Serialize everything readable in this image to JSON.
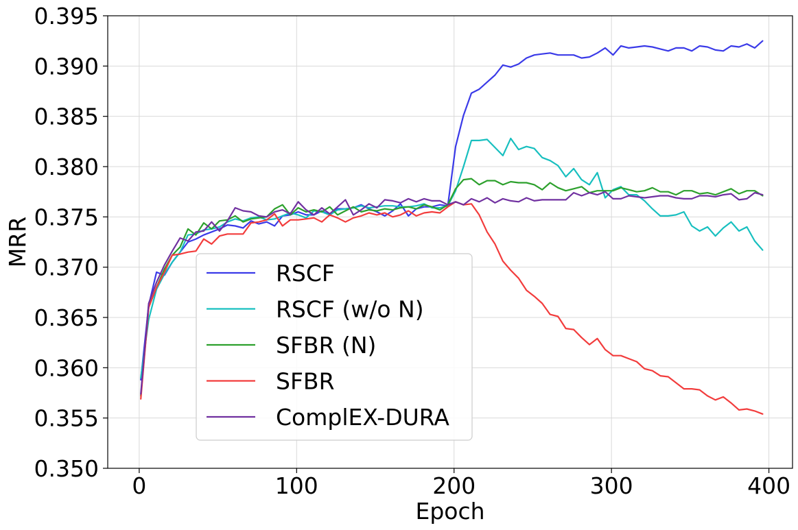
{
  "chart_data": {
    "type": "line",
    "title": "",
    "xlabel": "Epoch",
    "ylabel": "MRR",
    "xlim": [
      -20,
      415
    ],
    "ylim": [
      0.35,
      0.395
    ],
    "xticks": [
      0,
      100,
      200,
      300,
      400
    ],
    "xtick_labels": [
      "0",
      "100",
      "200",
      "300",
      "400"
    ],
    "yticks": [
      0.35,
      0.355,
      0.36,
      0.365,
      0.37,
      0.375,
      0.38,
      0.385,
      0.39,
      0.395
    ],
    "ytick_labels": [
      "0.350",
      "0.355",
      "0.360",
      "0.365",
      "0.370",
      "0.375",
      "0.380",
      "0.385",
      "0.390",
      "0.395"
    ],
    "grid": true,
    "legend_position": "lower-left",
    "x": [
      1,
      6,
      11,
      16,
      21,
      26,
      31,
      36,
      41,
      46,
      51,
      56,
      61,
      66,
      71,
      76,
      81,
      86,
      91,
      96,
      101,
      106,
      111,
      116,
      121,
      126,
      131,
      136,
      141,
      146,
      151,
      156,
      161,
      166,
      171,
      176,
      181,
      186,
      191,
      196,
      201,
      206,
      211,
      216,
      221,
      226,
      231,
      236,
      241,
      246,
      251,
      256,
      261,
      266,
      271,
      276,
      281,
      286,
      291,
      296,
      301,
      306,
      311,
      316,
      321,
      326,
      331,
      336,
      341,
      346,
      351,
      356,
      361,
      366,
      371,
      376,
      381,
      386,
      391,
      396
    ],
    "series": [
      {
        "name": "RSCF",
        "color": "#3a3ae8",
        "values": [
          0.3588,
          0.3662,
          0.3695,
          0.3692,
          0.3705,
          0.3715,
          0.3725,
          0.3728,
          0.3732,
          0.3735,
          0.3738,
          0.3742,
          0.3741,
          0.3739,
          0.3746,
          0.3743,
          0.3745,
          0.3741,
          0.3751,
          0.3752,
          0.3755,
          0.3752,
          0.3752,
          0.3756,
          0.3752,
          0.3758,
          0.3758,
          0.3759,
          0.3762,
          0.3758,
          0.3755,
          0.3751,
          0.3756,
          0.3763,
          0.3751,
          0.3758,
          0.376,
          0.376,
          0.3762,
          0.3761,
          0.382,
          0.3851,
          0.3873,
          0.3877,
          0.3884,
          0.3891,
          0.3901,
          0.3899,
          0.3902,
          0.3908,
          0.3911,
          0.3912,
          0.3913,
          0.3911,
          0.3911,
          0.3911,
          0.3908,
          0.3909,
          0.3913,
          0.3918,
          0.3911,
          0.392,
          0.3918,
          0.3919,
          0.392,
          0.3919,
          0.3917,
          0.3915,
          0.3918,
          0.3918,
          0.3915,
          0.392,
          0.3919,
          0.3916,
          0.3915,
          0.392,
          0.3919,
          0.3922,
          0.3918,
          0.3925
        ]
      },
      {
        "name": "RSCF (w/o N)",
        "color": "#17bfbf",
        "values": [
          0.359,
          0.3648,
          0.3678,
          0.3693,
          0.3705,
          0.3715,
          0.3732,
          0.3733,
          0.3737,
          0.3738,
          0.374,
          0.3745,
          0.3748,
          0.3746,
          0.3749,
          0.375,
          0.3747,
          0.3748,
          0.3751,
          0.3754,
          0.3752,
          0.3749,
          0.3756,
          0.3755,
          0.3752,
          0.3757,
          0.3758,
          0.3759,
          0.3761,
          0.3759,
          0.376,
          0.3761,
          0.3761,
          0.376,
          0.376,
          0.3761,
          0.3763,
          0.3759,
          0.3759,
          0.3761,
          0.3776,
          0.38,
          0.3826,
          0.3826,
          0.3827,
          0.3819,
          0.3811,
          0.3828,
          0.3817,
          0.382,
          0.3818,
          0.3809,
          0.3806,
          0.3801,
          0.379,
          0.3798,
          0.3787,
          0.3782,
          0.3794,
          0.3769,
          0.3777,
          0.378,
          0.3772,
          0.3772,
          0.3766,
          0.3758,
          0.3751,
          0.3751,
          0.3752,
          0.3755,
          0.3741,
          0.3736,
          0.374,
          0.3731,
          0.3739,
          0.3745,
          0.3736,
          0.374,
          0.3726,
          0.3717
        ]
      },
      {
        "name": "SFBR (N)",
        "color": "#2ca02c",
        "values": [
          0.3572,
          0.366,
          0.368,
          0.3698,
          0.3712,
          0.372,
          0.3738,
          0.3732,
          0.3744,
          0.3738,
          0.3746,
          0.3747,
          0.3751,
          0.3745,
          0.3748,
          0.3749,
          0.375,
          0.3758,
          0.3762,
          0.3752,
          0.3759,
          0.3755,
          0.3757,
          0.3755,
          0.376,
          0.3752,
          0.3756,
          0.376,
          0.3755,
          0.3757,
          0.3756,
          0.3758,
          0.3757,
          0.3759,
          0.376,
          0.3758,
          0.3762,
          0.376,
          0.3757,
          0.3762,
          0.3778,
          0.3787,
          0.3788,
          0.3782,
          0.3786,
          0.3786,
          0.3782,
          0.3785,
          0.3784,
          0.3784,
          0.3782,
          0.3777,
          0.3784,
          0.3779,
          0.3776,
          0.3778,
          0.378,
          0.3774,
          0.3776,
          0.3776,
          0.3776,
          0.3779,
          0.3777,
          0.3775,
          0.3776,
          0.3779,
          0.3775,
          0.3775,
          0.3772,
          0.3776,
          0.3776,
          0.3773,
          0.3774,
          0.3772,
          0.3775,
          0.3778,
          0.3773,
          0.3776,
          0.3776,
          0.3771
        ]
      },
      {
        "name": "SFBR",
        "color": "#f23c3c",
        "values": [
          0.3569,
          0.366,
          0.368,
          0.3695,
          0.3712,
          0.3713,
          0.3715,
          0.3716,
          0.3728,
          0.3723,
          0.3731,
          0.3733,
          0.3733,
          0.3733,
          0.3744,
          0.3745,
          0.3747,
          0.3753,
          0.3741,
          0.3747,
          0.3747,
          0.3748,
          0.3749,
          0.3745,
          0.3752,
          0.3749,
          0.3745,
          0.3749,
          0.3751,
          0.3754,
          0.3752,
          0.3754,
          0.375,
          0.3752,
          0.3756,
          0.3751,
          0.3754,
          0.3755,
          0.3754,
          0.376,
          0.3765,
          0.3762,
          0.3763,
          0.3752,
          0.3735,
          0.3723,
          0.3706,
          0.3697,
          0.3689,
          0.3677,
          0.3671,
          0.3664,
          0.3653,
          0.3651,
          0.3639,
          0.3638,
          0.363,
          0.3623,
          0.3629,
          0.3618,
          0.3612,
          0.3612,
          0.3609,
          0.3606,
          0.3599,
          0.3597,
          0.3592,
          0.3591,
          0.3585,
          0.3579,
          0.3579,
          0.3578,
          0.3572,
          0.3568,
          0.3571,
          0.3565,
          0.3558,
          0.3559,
          0.3557,
          0.3554
        ]
      },
      {
        "name": "ComplEX-DURA",
        "color": "#7030a0",
        "values": [
          0.3574,
          0.3664,
          0.3685,
          0.3702,
          0.3716,
          0.3729,
          0.3726,
          0.3735,
          0.3736,
          0.3745,
          0.3736,
          0.3746,
          0.3759,
          0.3756,
          0.3755,
          0.3751,
          0.375,
          0.3755,
          0.3757,
          0.3753,
          0.3765,
          0.3757,
          0.3752,
          0.3759,
          0.3753,
          0.376,
          0.3767,
          0.3752,
          0.3757,
          0.3763,
          0.3759,
          0.3767,
          0.3766,
          0.3764,
          0.3768,
          0.3765,
          0.3768,
          0.3766,
          0.3766,
          0.3762,
          0.3765,
          0.3762,
          0.3768,
          0.3765,
          0.3769,
          0.3764,
          0.3768,
          0.3766,
          0.3765,
          0.3769,
          0.3766,
          0.3767,
          0.3767,
          0.3767,
          0.3767,
          0.3774,
          0.3771,
          0.3774,
          0.3772,
          0.3775,
          0.3768,
          0.3768,
          0.3771,
          0.377,
          0.3769,
          0.377,
          0.3771,
          0.3771,
          0.3769,
          0.3768,
          0.3768,
          0.3771,
          0.3771,
          0.377,
          0.3772,
          0.3773,
          0.3767,
          0.3768,
          0.3774,
          0.3772
        ]
      }
    ]
  }
}
